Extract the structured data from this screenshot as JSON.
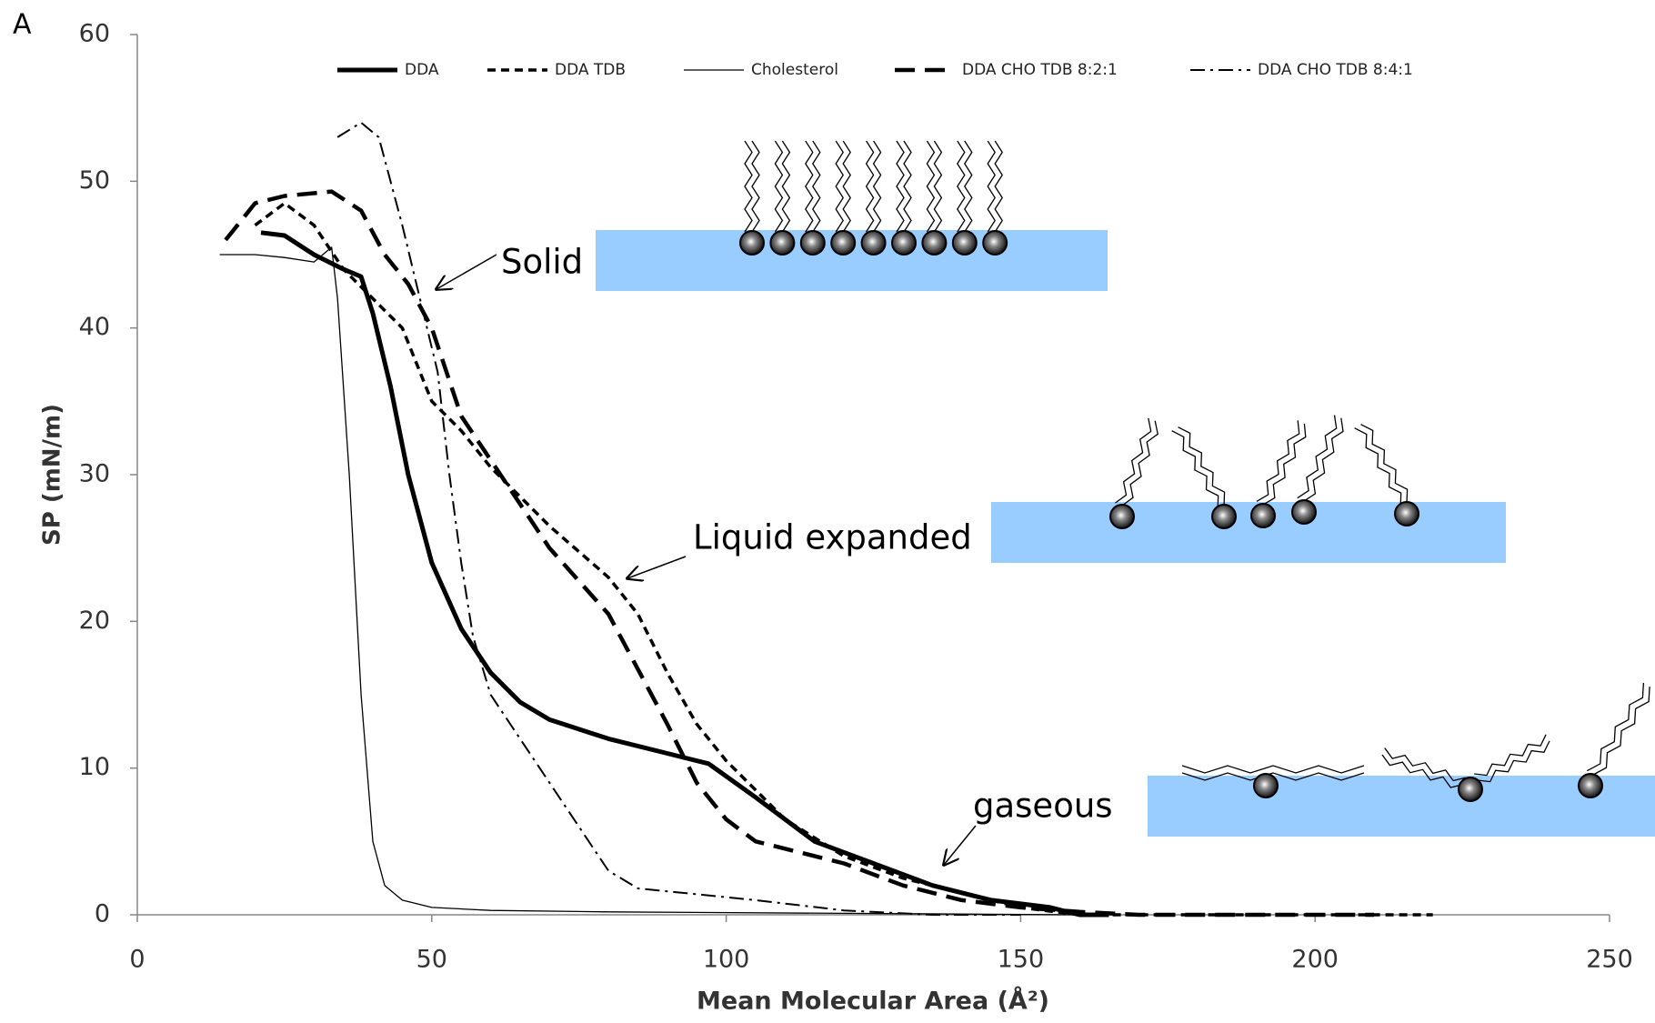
{
  "chart_data": {
    "type": "line",
    "panel_label": "A",
    "xlabel": "Mean Molecular Area (Å²)",
    "ylabel": "SP (mN/m)",
    "xlim": [
      0,
      250
    ],
    "xticks": [
      0,
      50,
      100,
      150,
      200,
      250
    ],
    "ylim": [
      0,
      60
    ],
    "yticks": [
      0,
      10,
      20,
      30,
      40,
      50,
      60
    ],
    "grid": false,
    "legend": "top",
    "annotations": [
      "Solid",
      "Liquid expanded",
      "gaseous"
    ],
    "series": [
      {
        "name": "DDA",
        "color": "#000000",
        "style": "thick",
        "x": [
          21,
          25,
          30,
          35,
          38,
          40,
          43,
          46,
          50,
          55,
          60,
          65,
          70,
          80,
          90,
          97,
          105,
          115,
          125,
          135,
          145,
          155,
          160,
          165
        ],
        "values": [
          46.5,
          46.3,
          45,
          44,
          43.5,
          41,
          36,
          30,
          24,
          19.5,
          16.5,
          14.5,
          13.3,
          12,
          11,
          10.3,
          8,
          5,
          3.5,
          2,
          1,
          0.5,
          0,
          0
        ]
      },
      {
        "name": "DDA TDB",
        "color": "#000000",
        "style": "dotted",
        "x": [
          20,
          25,
          30,
          35,
          40,
          45,
          50,
          55,
          60,
          70,
          80,
          85,
          90,
          95,
          100,
          110,
          120,
          130,
          140,
          150,
          160,
          200,
          220
        ],
        "values": [
          47,
          48.5,
          47,
          44,
          42,
          40,
          35,
          33,
          30.5,
          26.5,
          23,
          20.5,
          16.5,
          13,
          10.5,
          6.5,
          4,
          2.5,
          1.5,
          0.5,
          0,
          0,
          0
        ]
      },
      {
        "name": "Cholesterol",
        "color": "#000000",
        "style": "thin",
        "x": [
          14,
          20,
          25,
          30,
          33,
          34,
          36,
          38,
          40,
          42,
          45,
          50,
          60,
          80,
          120,
          160
        ],
        "values": [
          45,
          45,
          44.8,
          44.5,
          45.5,
          42,
          30,
          15,
          5,
          2,
          1,
          0.5,
          0.3,
          0.2,
          0.1,
          0
        ]
      },
      {
        "name": "DDA CHO TDB 8:2:1",
        "color": "#000000",
        "style": "dashed",
        "x": [
          15,
          20,
          25,
          33,
          38,
          42,
          46,
          50,
          55,
          60,
          70,
          80,
          90,
          95,
          100,
          105,
          120,
          130,
          140,
          150,
          160,
          170,
          210
        ],
        "values": [
          46,
          48.5,
          49,
          49.3,
          48,
          45,
          43,
          40,
          34,
          31,
          25,
          20.5,
          13,
          9,
          6.5,
          5,
          3.5,
          2,
          1,
          0.5,
          0.2,
          0,
          0
        ]
      },
      {
        "name": "DDA CHO TDB 8:4:1",
        "color": "#000000",
        "style": "dash-dot",
        "x": [
          34,
          38,
          41,
          45,
          48,
          51,
          53,
          55,
          57,
          60,
          65,
          70,
          75,
          80,
          85,
          95,
          105,
          120,
          135,
          150
        ],
        "values": [
          53,
          54,
          53,
          47,
          42,
          37,
          30,
          24,
          19,
          15,
          12,
          9,
          6,
          3,
          1.8,
          1.4,
          1,
          0.3,
          0,
          0
        ]
      }
    ]
  }
}
